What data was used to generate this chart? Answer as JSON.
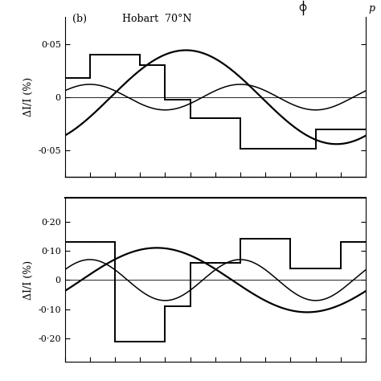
{
  "top_panel": {
    "yticks": [
      -0.05,
      0,
      0.05
    ],
    "ytick_labels": [
      "-0·05",
      "0",
      "0·05"
    ],
    "ylim": [
      -0.075,
      0.075
    ],
    "ylabel": "ΔI/I (%)",
    "hist_bins": [
      0,
      1,
      2,
      3,
      4,
      5,
      6,
      7,
      8,
      9,
      10,
      11,
      12
    ],
    "hist_vals": [
      0.018,
      0.04,
      0.04,
      0.03,
      -0.002,
      -0.02,
      -0.02,
      -0.048,
      -0.048,
      -0.048,
      -0.03,
      -0.03
    ],
    "curve1_amp": 0.044,
    "curve1_phase_deg": -55,
    "curve2_amp": 0.012,
    "curve2_phase_deg": 30,
    "curve2_freq": 2
  },
  "bottom_panel": {
    "yticks": [
      -0.2,
      -0.1,
      0,
      0.1,
      0.2
    ],
    "ytick_labels": [
      "-0·20",
      "-0·10",
      "0",
      "0·10",
      "0·20"
    ],
    "ylim": [
      -0.28,
      0.28
    ],
    "ylabel": "ΔI/I (%)",
    "hist_bins": [
      0,
      1,
      2,
      3,
      4,
      5,
      6,
      7,
      8,
      9,
      10,
      11,
      12
    ],
    "hist_vals": [
      0.13,
      0.13,
      -0.21,
      -0.21,
      -0.09,
      0.06,
      0.06,
      0.14,
      0.14,
      0.04,
      0.04,
      0.13
    ],
    "curve1_amp": 0.11,
    "curve1_phase_deg": -20,
    "curve1_freq": 1,
    "curve2_amp": 0.07,
    "curve2_phase_deg": 30,
    "curve2_freq": 2,
    "error_x": 9.5,
    "error_y": 0.215,
    "error_size": 0.055,
    "label_b": "(b)",
    "label_station": "Hobart  70°N"
  },
  "xlim": [
    0,
    12
  ],
  "bg_color": "white",
  "line_color": "black",
  "title_char": "p"
}
